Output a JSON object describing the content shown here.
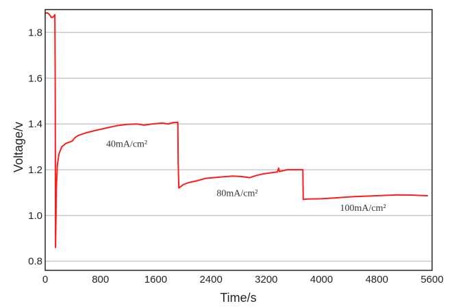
{
  "chart_data": {
    "type": "line",
    "title": "",
    "xlabel": "Time/s",
    "ylabel": "Voltage/v",
    "xlim": [
      0,
      5600
    ],
    "ylim": [
      0.76,
      1.9
    ],
    "xticks": [
      0,
      800,
      1600,
      2400,
      3200,
      4000,
      4800,
      5600
    ],
    "yticks": [
      "0.8",
      "1.0",
      "1.2",
      "1.4",
      "1.6",
      "1.8"
    ],
    "grid": "horizontal",
    "line_color": "#ff1a1a",
    "series": [
      {
        "name": "Voltage",
        "points": [
          [
            0,
            1.885
          ],
          [
            40,
            1.885
          ],
          [
            70,
            1.875
          ],
          [
            90,
            1.865
          ],
          [
            120,
            1.868
          ],
          [
            140,
            1.878
          ],
          [
            145,
            1.6
          ],
          [
            150,
            0.86
          ],
          [
            158,
            1.02
          ],
          [
            162,
            1.12
          ],
          [
            175,
            1.22
          ],
          [
            200,
            1.27
          ],
          [
            240,
            1.3
          ],
          [
            300,
            1.315
          ],
          [
            390,
            1.325
          ],
          [
            430,
            1.34
          ],
          [
            480,
            1.35
          ],
          [
            600,
            1.362
          ],
          [
            730,
            1.372
          ],
          [
            880,
            1.382
          ],
          [
            1030,
            1.392
          ],
          [
            1180,
            1.398
          ],
          [
            1330,
            1.4
          ],
          [
            1430,
            1.395
          ],
          [
            1550,
            1.4
          ],
          [
            1700,
            1.404
          ],
          [
            1780,
            1.4
          ],
          [
            1850,
            1.406
          ],
          [
            1920,
            1.407
          ],
          [
            1925,
            1.23
          ],
          [
            1935,
            1.12
          ],
          [
            2000,
            1.135
          ],
          [
            2070,
            1.143
          ],
          [
            2200,
            1.152
          ],
          [
            2320,
            1.162
          ],
          [
            2500,
            1.167
          ],
          [
            2710,
            1.172
          ],
          [
            2850,
            1.17
          ],
          [
            2960,
            1.165
          ],
          [
            3060,
            1.175
          ],
          [
            3160,
            1.182
          ],
          [
            3300,
            1.188
          ],
          [
            3360,
            1.19
          ],
          [
            3380,
            1.207
          ],
          [
            3390,
            1.192
          ],
          [
            3510,
            1.2
          ],
          [
            3730,
            1.2
          ],
          [
            3735,
            1.07
          ],
          [
            3800,
            1.072
          ],
          [
            4000,
            1.073
          ],
          [
            4200,
            1.077
          ],
          [
            4450,
            1.082
          ],
          [
            4700,
            1.085
          ],
          [
            5090,
            1.09
          ],
          [
            5300,
            1.089
          ],
          [
            5540,
            1.086
          ]
        ]
      }
    ],
    "annotations": [
      {
        "text": "40mA/cm²",
        "x": 1180,
        "y": 1.3
      },
      {
        "text": "80mA/cm²",
        "x": 2780,
        "y": 1.085
      },
      {
        "text": "100mA/cm²",
        "x": 4600,
        "y": 1.02
      }
    ]
  }
}
